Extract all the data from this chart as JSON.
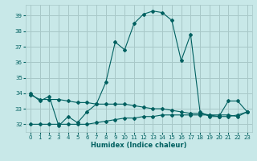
{
  "title": "",
  "xlabel": "Humidex (Indice chaleur)",
  "background_color": "#c8e8e8",
  "grid_color": "#a8c8c8",
  "line_color": "#006060",
  "xlim": [
    -0.5,
    23.5
  ],
  "ylim": [
    31.5,
    39.7
  ],
  "yticks": [
    32,
    33,
    34,
    35,
    36,
    37,
    38,
    39
  ],
  "xticks": [
    0,
    1,
    2,
    3,
    4,
    5,
    6,
    7,
    8,
    9,
    10,
    11,
    12,
    13,
    14,
    15,
    16,
    17,
    18,
    19,
    20,
    21,
    22,
    23
  ],
  "series1_x": [
    0,
    1,
    2,
    3,
    4,
    5,
    6,
    7,
    8,
    9,
    10,
    11,
    12,
    13,
    14,
    15,
    16,
    17,
    18,
    19,
    20,
    21,
    22,
    23
  ],
  "series1_y": [
    34.0,
    33.5,
    33.8,
    31.9,
    32.5,
    32.1,
    32.8,
    33.3,
    34.7,
    37.3,
    36.8,
    38.5,
    39.1,
    39.3,
    39.2,
    38.7,
    36.1,
    37.8,
    32.8,
    32.5,
    32.5,
    33.5,
    33.5,
    32.8
  ],
  "series2_x": [
    0,
    1,
    2,
    3,
    4,
    5,
    6,
    7,
    8,
    9,
    10,
    11,
    12,
    13,
    14,
    15,
    16,
    17,
    18,
    19,
    20,
    21,
    22,
    23
  ],
  "series2_y": [
    33.9,
    33.6,
    33.6,
    33.6,
    33.5,
    33.4,
    33.4,
    33.3,
    33.3,
    33.3,
    33.3,
    33.2,
    33.1,
    33.0,
    33.0,
    32.9,
    32.8,
    32.7,
    32.7,
    32.6,
    32.6,
    32.6,
    32.5,
    32.8
  ],
  "series3_x": [
    0,
    1,
    2,
    3,
    4,
    5,
    6,
    7,
    8,
    9,
    10,
    11,
    12,
    13,
    14,
    15,
    16,
    17,
    18,
    19,
    20,
    21,
    22,
    23
  ],
  "series3_y": [
    32.0,
    32.0,
    32.0,
    32.0,
    32.0,
    32.0,
    32.0,
    32.1,
    32.2,
    32.3,
    32.4,
    32.4,
    32.5,
    32.5,
    32.6,
    32.6,
    32.6,
    32.6,
    32.6,
    32.6,
    32.5,
    32.5,
    32.6,
    32.8
  ]
}
